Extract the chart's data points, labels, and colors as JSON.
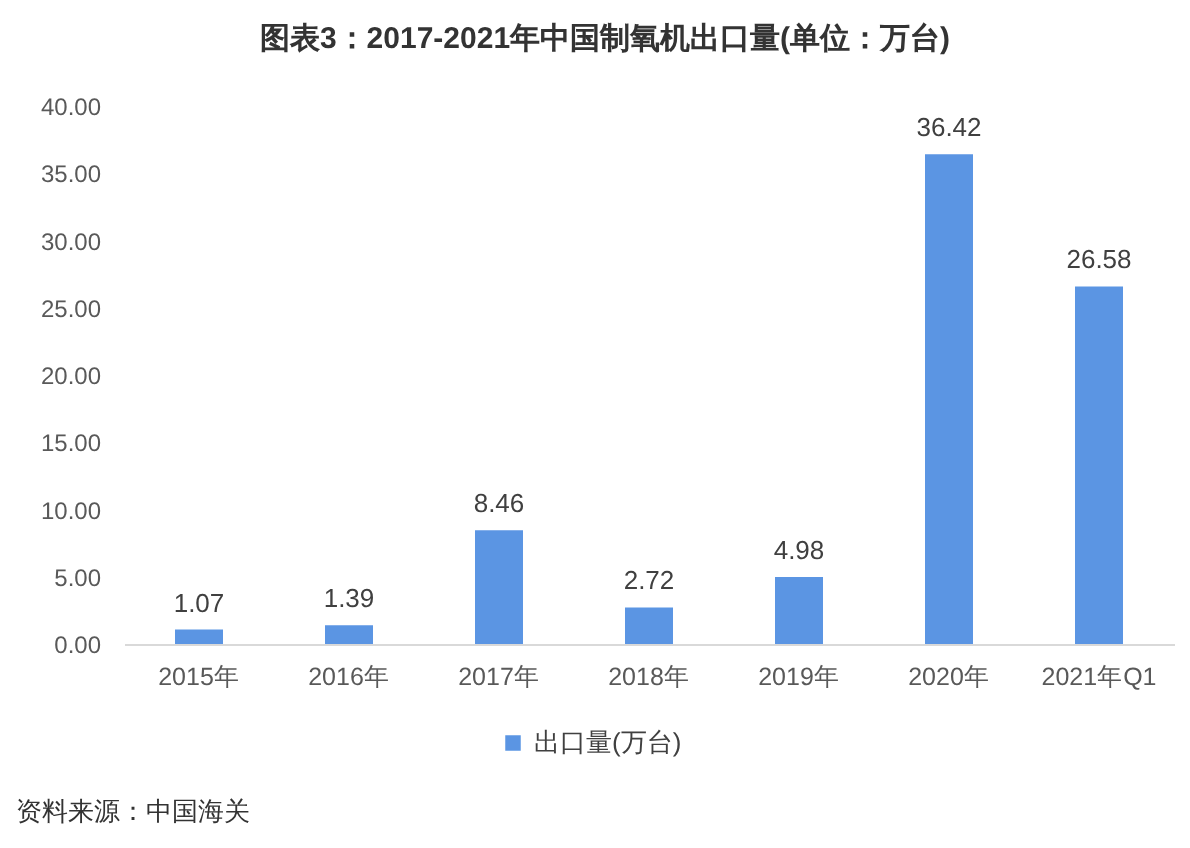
{
  "chart_data": {
    "type": "bar",
    "title": "图表3：2017-2021年中国制氧机出口量(单位：万台)",
    "categories": [
      "2015年",
      "2016年",
      "2017年",
      "2018年",
      "2019年",
      "2020年",
      "2021年Q1"
    ],
    "series": [
      {
        "name": "出口量(万台)",
        "color": "#5b95e3",
        "values": [
          1.07,
          1.39,
          8.46,
          2.72,
          4.98,
          36.42,
          26.58
        ]
      }
    ],
    "ylim": [
      0,
      40
    ],
    "yticks": [
      {
        "value": 0,
        "label": "0.00"
      },
      {
        "value": 5,
        "label": "5.00"
      },
      {
        "value": 10,
        "label": "10.00"
      },
      {
        "value": 15,
        "label": "15.00"
      },
      {
        "value": 20,
        "label": "20.00"
      },
      {
        "value": 25,
        "label": "25.00"
      },
      {
        "value": 30,
        "label": "30.00"
      },
      {
        "value": 35,
        "label": "35.00"
      },
      {
        "value": 40,
        "label": "40.00"
      }
    ],
    "data_labels": true,
    "grid": false,
    "legend": "bottom",
    "annotations": [
      "资料来源：中国海关"
    ]
  }
}
